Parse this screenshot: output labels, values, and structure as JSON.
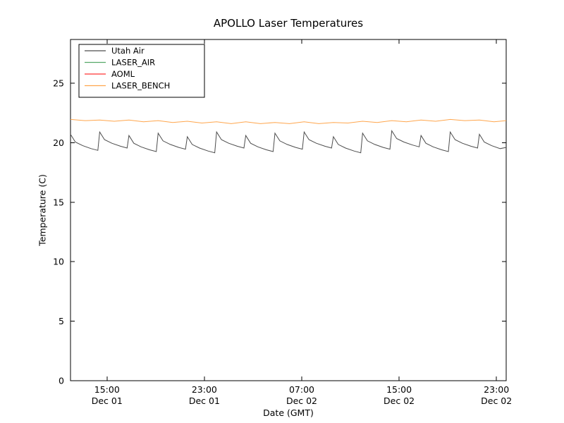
{
  "chart_data": {
    "type": "line",
    "title": "APOLLO Laser Temperatures",
    "xlabel": "Date (GMT)",
    "ylabel": "Temperature (C)",
    "ylim": [
      0,
      28.67
    ],
    "yticks": [
      0,
      5,
      10,
      15,
      20,
      25
    ],
    "xlim_hours": [
      0,
      35.8
    ],
    "grid": false,
    "legend_position": "upper left",
    "xticks": [
      {
        "pos": 3,
        "time": "15:00",
        "date": "Dec 01"
      },
      {
        "pos": 11,
        "time": "23:00",
        "date": "Dec 01"
      },
      {
        "pos": 19,
        "time": "07:00",
        "date": "Dec 02"
      },
      {
        "pos": 27,
        "time": "15:00",
        "date": "Dec 02"
      },
      {
        "pos": 35,
        "time": "23:00",
        "date": "Dec 02"
      }
    ],
    "series": [
      {
        "name": "Utah Air",
        "color": "#4d4d4d",
        "x": [
          0,
          0.4,
          1.0,
          1.7,
          2.25,
          2.4,
          2.8,
          3.4,
          4.1,
          4.65,
          4.8,
          5.2,
          5.8,
          6.5,
          7.05,
          7.2,
          7.6,
          8.2,
          8.9,
          9.45,
          9.6,
          10.0,
          10.6,
          11.3,
          11.85,
          12.0,
          12.4,
          13.0,
          13.7,
          14.25,
          14.4,
          14.8,
          15.4,
          16.1,
          16.65,
          16.8,
          17.2,
          17.8,
          18.5,
          19.05,
          19.2,
          19.6,
          20.2,
          20.9,
          21.45,
          21.6,
          22.0,
          22.6,
          23.3,
          23.85,
          24.0,
          24.4,
          25.0,
          25.7,
          26.25,
          26.4,
          26.8,
          27.4,
          28.1,
          28.65,
          28.8,
          29.2,
          29.8,
          30.5,
          31.05,
          31.2,
          31.6,
          32.2,
          32.9,
          33.45,
          33.6,
          34.0,
          34.6,
          35.3,
          35.8
        ],
        "values": [
          20.7,
          20.05,
          19.75,
          19.5,
          19.35,
          20.9,
          20.25,
          19.95,
          19.7,
          19.55,
          20.6,
          19.95,
          19.65,
          19.4,
          19.25,
          20.8,
          20.15,
          19.85,
          19.6,
          19.45,
          20.5,
          19.85,
          19.55,
          19.3,
          19.15,
          20.9,
          20.25,
          19.95,
          19.7,
          19.55,
          20.6,
          19.95,
          19.65,
          19.4,
          19.25,
          20.8,
          20.15,
          19.85,
          19.6,
          19.45,
          20.9,
          20.25,
          19.95,
          19.7,
          19.55,
          20.5,
          19.85,
          19.55,
          19.3,
          19.15,
          20.8,
          20.15,
          19.85,
          19.6,
          19.45,
          21.0,
          20.35,
          20.05,
          19.8,
          19.65,
          20.6,
          19.95,
          19.65,
          19.4,
          19.25,
          20.9,
          20.25,
          19.95,
          19.7,
          19.55,
          20.7,
          20.05,
          19.75,
          19.5,
          19.6
        ]
      },
      {
        "name": "LASER_AIR",
        "color": "#55a868",
        "x": [],
        "values": []
      },
      {
        "name": "AOML",
        "color": "#ff3333",
        "x": [],
        "values": []
      },
      {
        "name": "LASER_BENCH",
        "color": "#ffa64d",
        "x": [
          0,
          1.2,
          2.4,
          3.6,
          4.8,
          6.0,
          7.2,
          8.4,
          9.6,
          10.8,
          12.0,
          13.2,
          14.4,
          15.6,
          16.8,
          18.0,
          19.2,
          20.4,
          21.6,
          22.8,
          24.0,
          25.2,
          26.4,
          27.6,
          28.8,
          30.0,
          31.2,
          32.4,
          33.6,
          34.8,
          35.8
        ],
        "values": [
          21.95,
          21.85,
          21.9,
          21.8,
          21.9,
          21.75,
          21.85,
          21.7,
          21.8,
          21.65,
          21.75,
          21.6,
          21.75,
          21.6,
          21.7,
          21.6,
          21.75,
          21.6,
          21.7,
          21.65,
          21.8,
          21.7,
          21.85,
          21.75,
          21.9,
          21.8,
          21.95,
          21.85,
          21.9,
          21.75,
          21.85
        ]
      }
    ]
  }
}
